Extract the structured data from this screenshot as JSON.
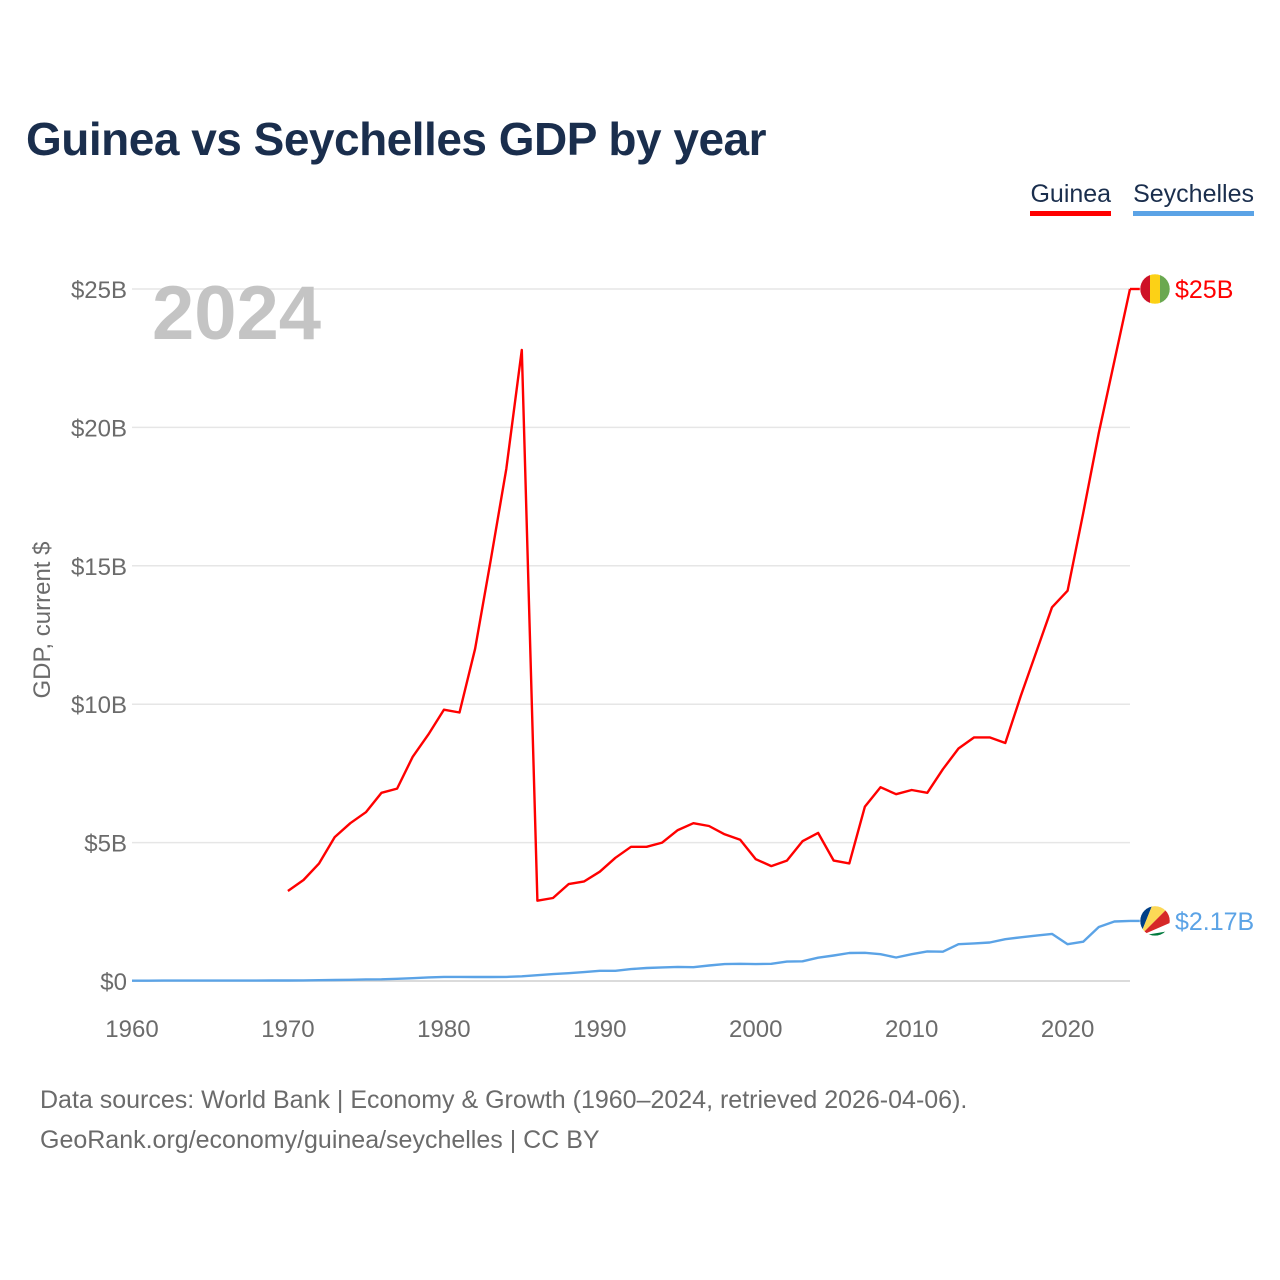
{
  "title": "Guinea vs Seychelles GDP by year",
  "year_label": "2024",
  "legend": [
    {
      "name": "Guinea",
      "color": "#ff0000"
    },
    {
      "name": "Seychelles",
      "color": "#5ba3e6"
    }
  ],
  "footer": {
    "line1": "Data sources: World Bank | Economy & Growth (1960–2024, retrieved 2026-04-06).",
    "line2": "GeoRank.org/economy/guinea/seychelles | CC BY"
  },
  "chart_data": {
    "type": "line",
    "title": "Guinea vs Seychelles GDP by year",
    "xlabel": "",
    "ylabel": "GDP, current $",
    "xlim": [
      1960,
      2024
    ],
    "ylim": [
      0,
      25
    ],
    "y_unit": "billions USD",
    "x_ticks": [
      1960,
      1970,
      1980,
      1990,
      2000,
      2010,
      2020
    ],
    "y_ticks": [
      {
        "value": 0,
        "label": "$0"
      },
      {
        "value": 5,
        "label": "$5B"
      },
      {
        "value": 10,
        "label": "$10B"
      },
      {
        "value": 15,
        "label": "$15B"
      },
      {
        "value": 20,
        "label": "$20B"
      },
      {
        "value": 25,
        "label": "$25B"
      }
    ],
    "grid": true,
    "legend_position": "top-right",
    "series": [
      {
        "name": "Guinea",
        "color": "#ff0000",
        "end_label": "$25B",
        "x": [
          1970,
          1971,
          1972,
          1973,
          1974,
          1975,
          1976,
          1977,
          1978,
          1979,
          1980,
          1981,
          1982,
          1983,
          1984,
          1985,
          1986,
          1987,
          1988,
          1989,
          1990,
          1991,
          1992,
          1993,
          1994,
          1995,
          1996,
          1997,
          1998,
          1999,
          2000,
          2001,
          2002,
          2003,
          2004,
          2005,
          2006,
          2007,
          2008,
          2009,
          2010,
          2011,
          2012,
          2013,
          2014,
          2015,
          2016,
          2017,
          2018,
          2019,
          2020,
          2021,
          2022,
          2023,
          2024
        ],
        "values": [
          3.25,
          3.65,
          4.25,
          5.2,
          5.7,
          6.1,
          6.8,
          6.95,
          8.1,
          8.9,
          9.8,
          9.7,
          12.0,
          15.2,
          18.5,
          22.8,
          2.9,
          3.0,
          3.5,
          3.6,
          3.95,
          4.45,
          4.85,
          4.85,
          5.0,
          5.45,
          5.7,
          5.6,
          5.3,
          5.1,
          4.4,
          4.15,
          4.35,
          5.05,
          5.35,
          4.35,
          4.25,
          6.3,
          7.0,
          6.75,
          6.9,
          6.8,
          7.65,
          8.4,
          8.8,
          8.8,
          8.6,
          10.3,
          11.9,
          13.5,
          14.1,
          16.9,
          19.8,
          22.4,
          25.0
        ]
      },
      {
        "name": "Seychelles",
        "color": "#5ba3e6",
        "end_label": "$2.17B",
        "x": [
          1960,
          1961,
          1962,
          1963,
          1964,
          1965,
          1966,
          1967,
          1968,
          1969,
          1970,
          1971,
          1972,
          1973,
          1974,
          1975,
          1976,
          1977,
          1978,
          1979,
          1980,
          1981,
          1982,
          1983,
          1984,
          1985,
          1986,
          1987,
          1988,
          1989,
          1990,
          1991,
          1992,
          1993,
          1994,
          1995,
          1996,
          1997,
          1998,
          1999,
          2000,
          2001,
          2002,
          2003,
          2004,
          2005,
          2006,
          2007,
          2008,
          2009,
          2010,
          2011,
          2012,
          2013,
          2014,
          2015,
          2016,
          2017,
          2018,
          2019,
          2020,
          2021,
          2022,
          2023,
          2024
        ],
        "values": [
          0.012,
          0.012,
          0.013,
          0.013,
          0.014,
          0.014,
          0.015,
          0.016,
          0.016,
          0.018,
          0.019,
          0.022,
          0.028,
          0.035,
          0.045,
          0.056,
          0.063,
          0.078,
          0.1,
          0.13,
          0.147,
          0.147,
          0.143,
          0.143,
          0.147,
          0.17,
          0.21,
          0.25,
          0.28,
          0.32,
          0.37,
          0.37,
          0.43,
          0.47,
          0.49,
          0.51,
          0.5,
          0.56,
          0.61,
          0.62,
          0.61,
          0.62,
          0.7,
          0.71,
          0.84,
          0.92,
          1.01,
          1.02,
          0.97,
          0.85,
          0.97,
          1.07,
          1.06,
          1.33,
          1.36,
          1.39,
          1.51,
          1.58,
          1.64,
          1.7,
          1.33,
          1.42,
          1.95,
          2.15,
          2.17
        ]
      }
    ]
  }
}
